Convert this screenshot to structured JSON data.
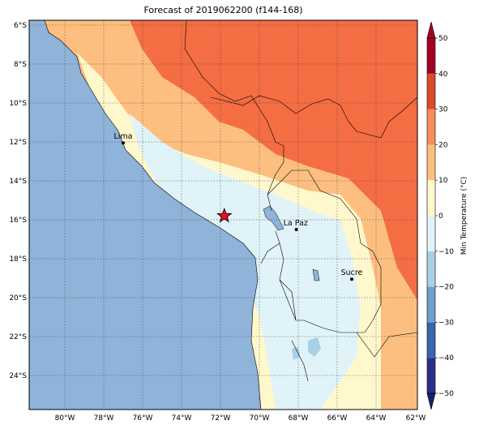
{
  "title": "Forecast of 2019062200 (f144-168)",
  "map": {
    "lon_ticks": [
      "80°W",
      "78°W",
      "76°W",
      "74°W",
      "72°W",
      "70°W",
      "68°W",
      "66°W",
      "64°W",
      "62°W"
    ],
    "lat_ticks": [
      "6°S",
      "8°S",
      "10°S",
      "12°S",
      "14°S",
      "16°S",
      "18°S",
      "20°S",
      "22°S",
      "24°S"
    ],
    "cities": [
      {
        "name": "Lima",
        "lon": -77.0,
        "lat": -12.05
      },
      {
        "name": "La Paz",
        "lon": -68.1,
        "lat": -16.5
      },
      {
        "name": "Sucre",
        "lon": -65.25,
        "lat": -19.05
      }
    ],
    "marker": {
      "lon": -71.8,
      "lat": -15.8,
      "color": "#e8101a"
    }
  },
  "colorbar": {
    "label": "Min Temperature (°C)",
    "ticks": [
      "50",
      "40",
      "30",
      "20",
      "10",
      "0",
      "−10",
      "−20",
      "−30",
      "−40",
      "−50"
    ],
    "colors": [
      "#2b2f8c",
      "#3b66ad",
      "#6f9fcd",
      "#a9d0e6",
      "#e0f3f8",
      "#fff8cc",
      "#fdbf80",
      "#f88e59",
      "#dc4a2c",
      "#a50026"
    ]
  },
  "legend_colors": {
    "ocean": "#8fb3d9",
    "lake": "#8fb3d9"
  }
}
